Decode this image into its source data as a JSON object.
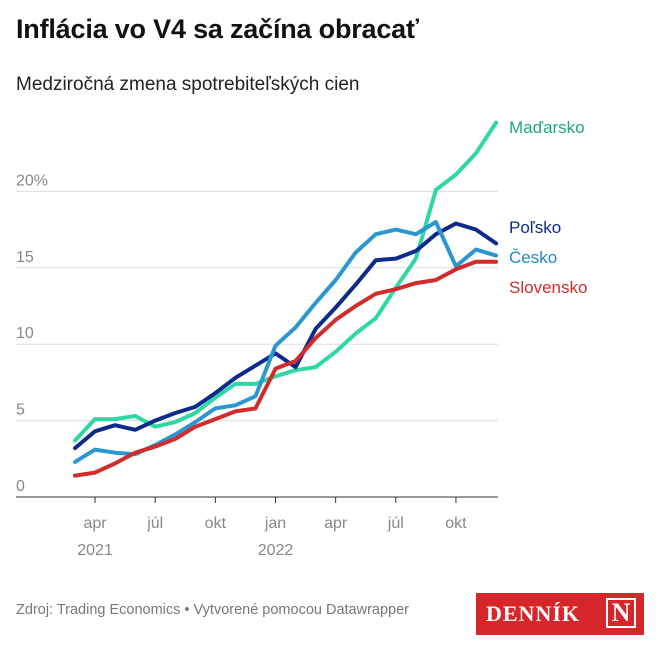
{
  "title": "Inflácia vo V4 sa začína obracať",
  "subtitle": "Medziročná zmena spotrebiteľských cien",
  "footer": {
    "source": "Zdroj: Trading Economics • Vytvorené pomocou Datawrapper"
  },
  "logo": {
    "text": "DENNÍK",
    "mark": "N",
    "background": "#d6262a"
  },
  "chart_data": {
    "type": "line",
    "x": [
      "2021-03",
      "2021-04",
      "2021-05",
      "2021-06",
      "2021-07",
      "2021-08",
      "2021-09",
      "2021-10",
      "2021-11",
      "2021-12",
      "2022-01",
      "2022-02",
      "2022-03",
      "2022-04",
      "2022-05",
      "2022-06",
      "2022-07",
      "2022-08",
      "2022-09",
      "2022-10",
      "2022-11",
      "2022-12"
    ],
    "ylim": [
      0,
      25
    ],
    "y_ticks": [
      {
        "value": 0,
        "label": "0"
      },
      {
        "value": 5,
        "label": "5"
      },
      {
        "value": 10,
        "label": "10"
      },
      {
        "value": 15,
        "label": "15"
      },
      {
        "value": 20,
        "label": "20%"
      }
    ],
    "x_ticks": [
      {
        "x": "2021-04",
        "label": "apr",
        "year": "2021"
      },
      {
        "x": "2021-07",
        "label": "júl",
        "year": ""
      },
      {
        "x": "2021-10",
        "label": "okt",
        "year": ""
      },
      {
        "x": "2022-01",
        "label": "jan",
        "year": "2022"
      },
      {
        "x": "2022-04",
        "label": "apr",
        "year": ""
      },
      {
        "x": "2022-07",
        "label": "júl",
        "year": ""
      },
      {
        "x": "2022-10",
        "label": "okt",
        "year": ""
      }
    ],
    "grid": "horizontal",
    "legend": "line-end labels",
    "series": [
      {
        "name": "Maďarsko",
        "color": "#2fd7a6",
        "label_color": "#1aab7d",
        "values": [
          3.7,
          5.1,
          5.1,
          5.3,
          4.6,
          4.9,
          5.5,
          6.5,
          7.4,
          7.4,
          7.9,
          8.3,
          8.5,
          9.5,
          10.7,
          11.7,
          13.7,
          15.6,
          20.1,
          21.1,
          22.5,
          24.5
        ]
      },
      {
        "name": "Poľsko",
        "color": "#0c2b8a",
        "label_color": "#0c2b8a",
        "values": [
          3.2,
          4.3,
          4.7,
          4.4,
          5.0,
          5.5,
          5.9,
          6.8,
          7.8,
          8.6,
          9.4,
          8.5,
          11.0,
          12.4,
          13.9,
          15.5,
          15.6,
          16.1,
          17.2,
          17.9,
          17.5,
          16.6
        ]
      },
      {
        "name": "Česko",
        "color": "#2b97d0",
        "label_color": "#1e8ac4",
        "values": [
          2.3,
          3.1,
          2.9,
          2.8,
          3.4,
          4.1,
          4.9,
          5.8,
          6.0,
          6.6,
          9.9,
          11.1,
          12.7,
          14.2,
          16.0,
          17.2,
          17.5,
          17.2,
          18.0,
          15.1,
          16.2,
          15.8
        ]
      },
      {
        "name": "Slovensko",
        "color": "#d12b2b",
        "label_color": "#d12b2b",
        "values": [
          1.4,
          1.6,
          2.2,
          2.9,
          3.3,
          3.8,
          4.6,
          5.1,
          5.6,
          5.8,
          8.4,
          8.9,
          10.4,
          11.6,
          12.5,
          13.3,
          13.6,
          14.0,
          14.2,
          14.9,
          15.4,
          15.4
        ]
      }
    ]
  }
}
